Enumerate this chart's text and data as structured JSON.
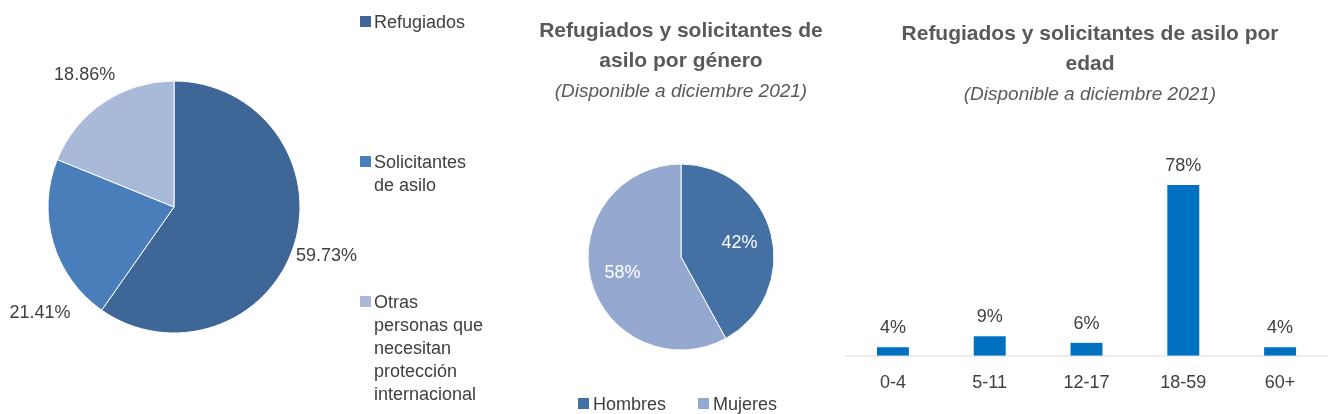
{
  "chart_data": [
    {
      "type": "pie",
      "categories": [
        "Refugiados",
        "Solicitantes de asilo",
        "Otras personas que necesitan protección internacional"
      ],
      "values": [
        59.73,
        21.41,
        18.86
      ],
      "colors": [
        "#3e6697",
        "#4a7ebb",
        "#a9b9d8"
      ],
      "value_labels": [
        "59.73%",
        "21.41%",
        "18.86%"
      ],
      "legend": "right"
    },
    {
      "type": "pie",
      "title": "Refugiados y solicitantes de asilo por género",
      "subtitle": "(Disponible a diciembre 2021)",
      "categories": [
        "Hombres",
        "Mujeres"
      ],
      "values": [
        42,
        58
      ],
      "colors": [
        "#4470a4",
        "#95a8d0"
      ],
      "value_labels": [
        "42%",
        "58%"
      ],
      "legend": "bottom"
    },
    {
      "type": "bar",
      "title": "Refugiados y solicitantes de asilo por edad",
      "subtitle": "(Disponible a diciembre 2021)",
      "categories": [
        "0-4",
        "5-11",
        "12-17",
        "18-59",
        "60+"
      ],
      "values": [
        4,
        9,
        6,
        78,
        4
      ],
      "color": "#0070c0",
      "value_labels": [
        "4%",
        "9%",
        "6%",
        "78%",
        "4%"
      ]
    }
  ]
}
